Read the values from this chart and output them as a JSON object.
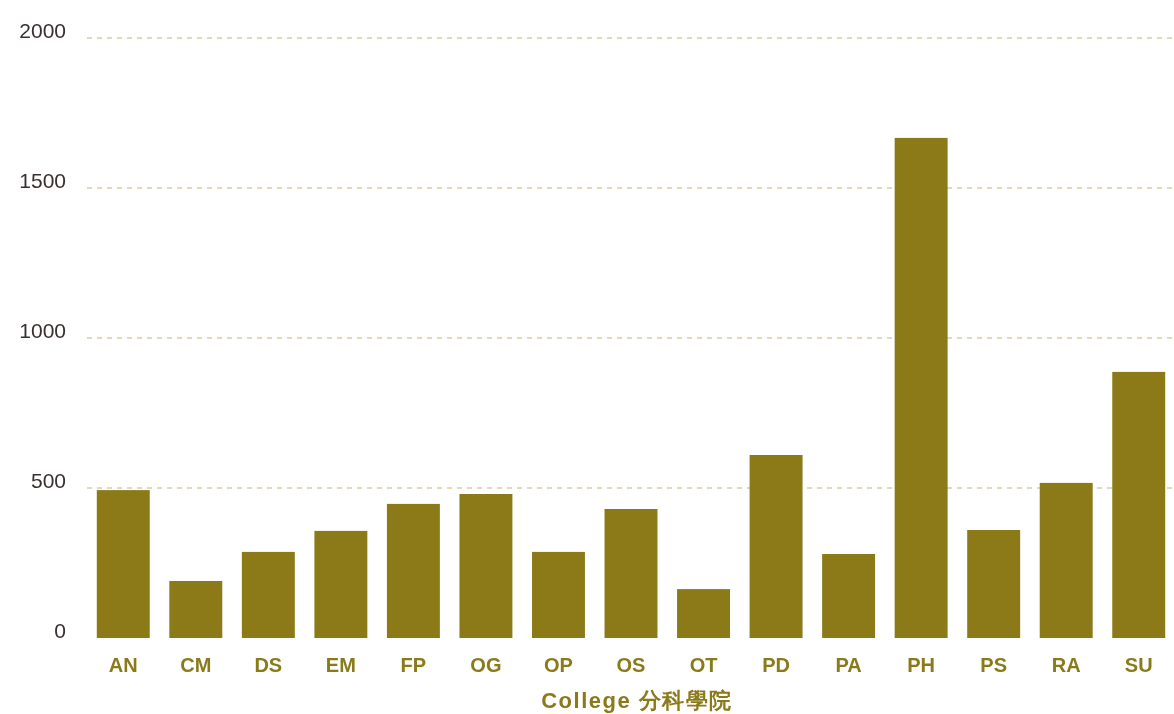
{
  "chart_data": {
    "type": "bar",
    "xlabel": "College 分科學院",
    "categories": [
      "AN",
      "CM",
      "DS",
      "EM",
      "FP",
      "OG",
      "OP",
      "OS",
      "OT",
      "PD",
      "PA",
      "PH",
      "PS",
      "RA",
      "SU"
    ],
    "values": [
      493,
      190,
      287,
      357,
      447,
      480,
      287,
      430,
      163,
      610,
      280,
      1667,
      360,
      517,
      887
    ],
    "color": "#8c7a19",
    "ylim": [
      0,
      2000
    ],
    "yticks": [
      0,
      500,
      1000,
      1500,
      2000
    ],
    "grid": "y"
  }
}
